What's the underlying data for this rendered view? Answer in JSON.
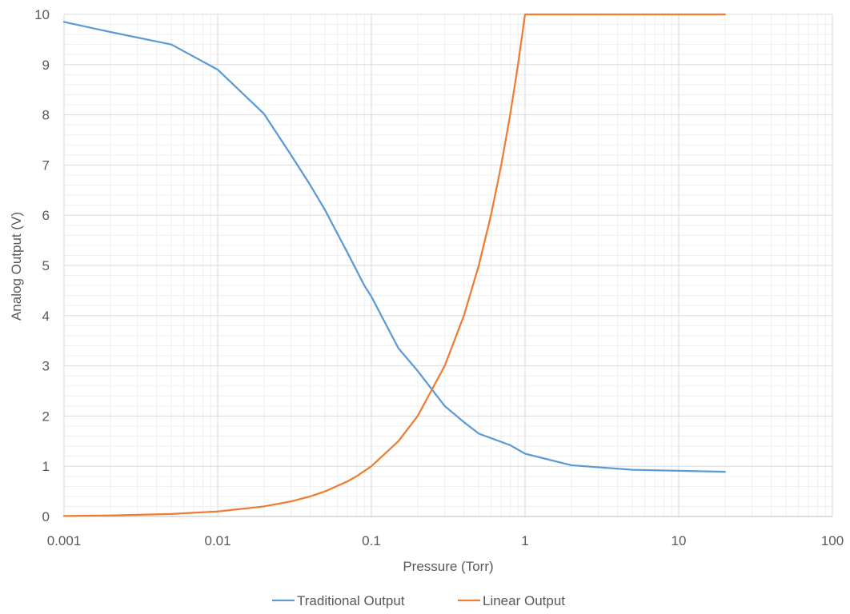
{
  "chart_data": {
    "type": "line",
    "title": "",
    "xlabel": "Pressure (Torr)",
    "ylabel": "Analog Output (V)",
    "x_scale": "log",
    "xlim": [
      0.001,
      100
    ],
    "ylim": [
      0,
      10
    ],
    "x_ticks": [
      "0.001",
      "0.01",
      "0.1",
      "1",
      "10",
      "100"
    ],
    "y_ticks": [
      "0",
      "1",
      "2",
      "3",
      "4",
      "5",
      "6",
      "7",
      "8",
      "9",
      "10"
    ],
    "grid": true,
    "legend_position": "bottom",
    "series": [
      {
        "name": "Traditional Output",
        "color": "#5B9BD5",
        "points": [
          [
            0.001,
            9.85
          ],
          [
            0.002,
            9.65
          ],
          [
            0.005,
            9.4
          ],
          [
            0.01,
            8.9
          ],
          [
            0.02,
            8.02
          ],
          [
            0.03,
            7.2
          ],
          [
            0.04,
            6.6
          ],
          [
            0.05,
            6.1
          ],
          [
            0.07,
            5.25
          ],
          [
            0.09,
            4.6
          ],
          [
            0.1,
            4.38
          ],
          [
            0.15,
            3.35
          ],
          [
            0.2,
            2.9
          ],
          [
            0.3,
            2.2
          ],
          [
            0.4,
            1.88
          ],
          [
            0.5,
            1.65
          ],
          [
            0.8,
            1.42
          ],
          [
            1,
            1.25
          ],
          [
            2,
            1.02
          ],
          [
            5,
            0.93
          ],
          [
            10,
            0.91
          ],
          [
            20,
            0.89
          ]
        ]
      },
      {
        "name": "Linear Output",
        "color": "#ED7D31",
        "points": [
          [
            0.001,
            0.01
          ],
          [
            0.002,
            0.02
          ],
          [
            0.005,
            0.05
          ],
          [
            0.01,
            0.1
          ],
          [
            0.02,
            0.2
          ],
          [
            0.03,
            0.3
          ],
          [
            0.04,
            0.4
          ],
          [
            0.05,
            0.5
          ],
          [
            0.07,
            0.7
          ],
          [
            0.08,
            0.8
          ],
          [
            0.1,
            1.0
          ],
          [
            0.15,
            1.5
          ],
          [
            0.2,
            2.0
          ],
          [
            0.3,
            3.0
          ],
          [
            0.4,
            4.0
          ],
          [
            0.5,
            5.0
          ],
          [
            0.6,
            6.0
          ],
          [
            0.7,
            7.0
          ],
          [
            0.8,
            8.0
          ],
          [
            0.9,
            9.0
          ],
          [
            1,
            10
          ],
          [
            2,
            10
          ],
          [
            5,
            10
          ],
          [
            10,
            10
          ],
          [
            20,
            10
          ]
        ]
      }
    ]
  }
}
